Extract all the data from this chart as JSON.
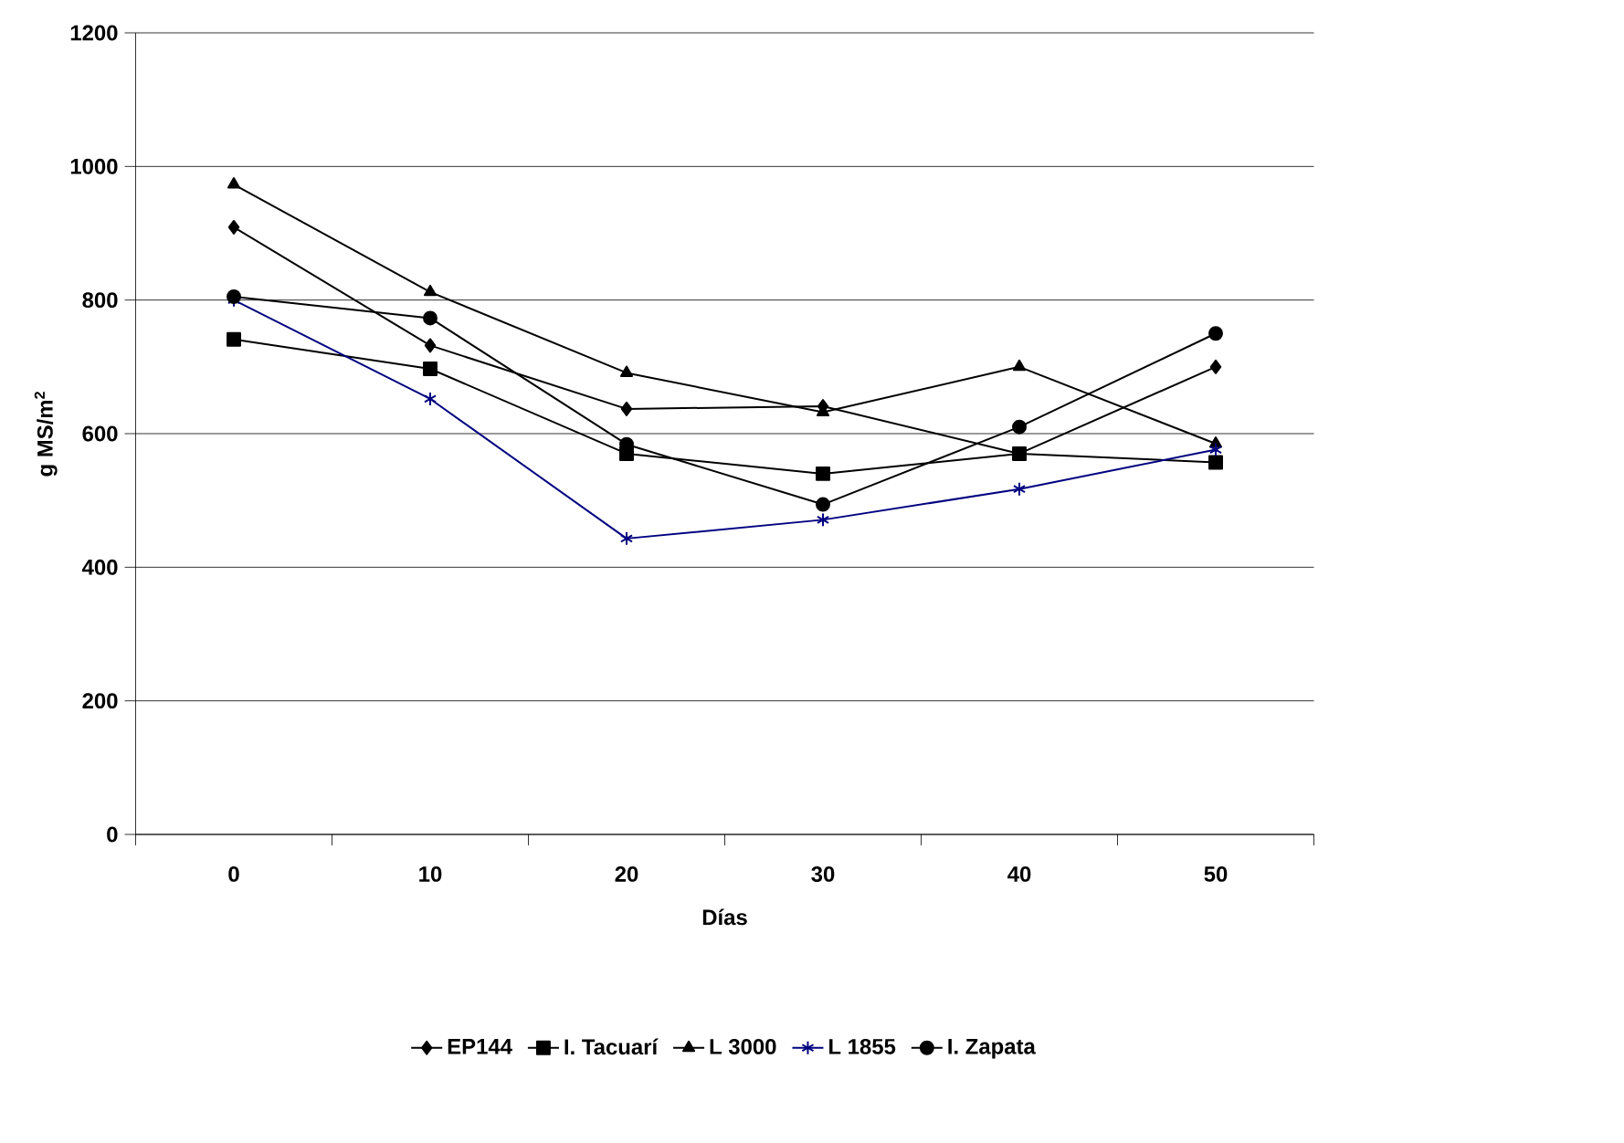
{
  "chart_data": {
    "type": "line",
    "xlabel": "Días",
    "ylabel": "g MS/m$^{2}$",
    "categories": [
      "0",
      "10",
      "20",
      "30",
      "40",
      "50"
    ],
    "ylim": [
      0,
      1200
    ],
    "yticks": [
      0,
      200,
      400,
      600,
      800,
      1000,
      1200
    ],
    "grid": "y",
    "legend": "bottom",
    "line_style": "solid",
    "series": [
      {
        "name": "EP144",
        "color": "#000000",
        "marker": "diamond",
        "values": [
          909,
          732,
          637,
          641,
          570,
          700
        ]
      },
      {
        "name": "I. Tacuarí",
        "color": "#000000",
        "marker": "square",
        "values": [
          741,
          697,
          570,
          540,
          570,
          557
        ]
      },
      {
        "name": "L 3000",
        "color": "#000000",
        "marker": "triangle",
        "values": [
          973,
          812,
          691,
          632,
          700,
          585
        ]
      },
      {
        "name": "L 1855",
        "color": "#000080",
        "marker": "cross",
        "values": [
          800,
          652,
          443,
          471,
          517,
          576
        ]
      },
      {
        "name": "I. Zapata",
        "color": "#000000",
        "marker": "circle",
        "values": [
          805,
          773,
          584,
          494,
          610,
          750
        ]
      }
    ]
  }
}
